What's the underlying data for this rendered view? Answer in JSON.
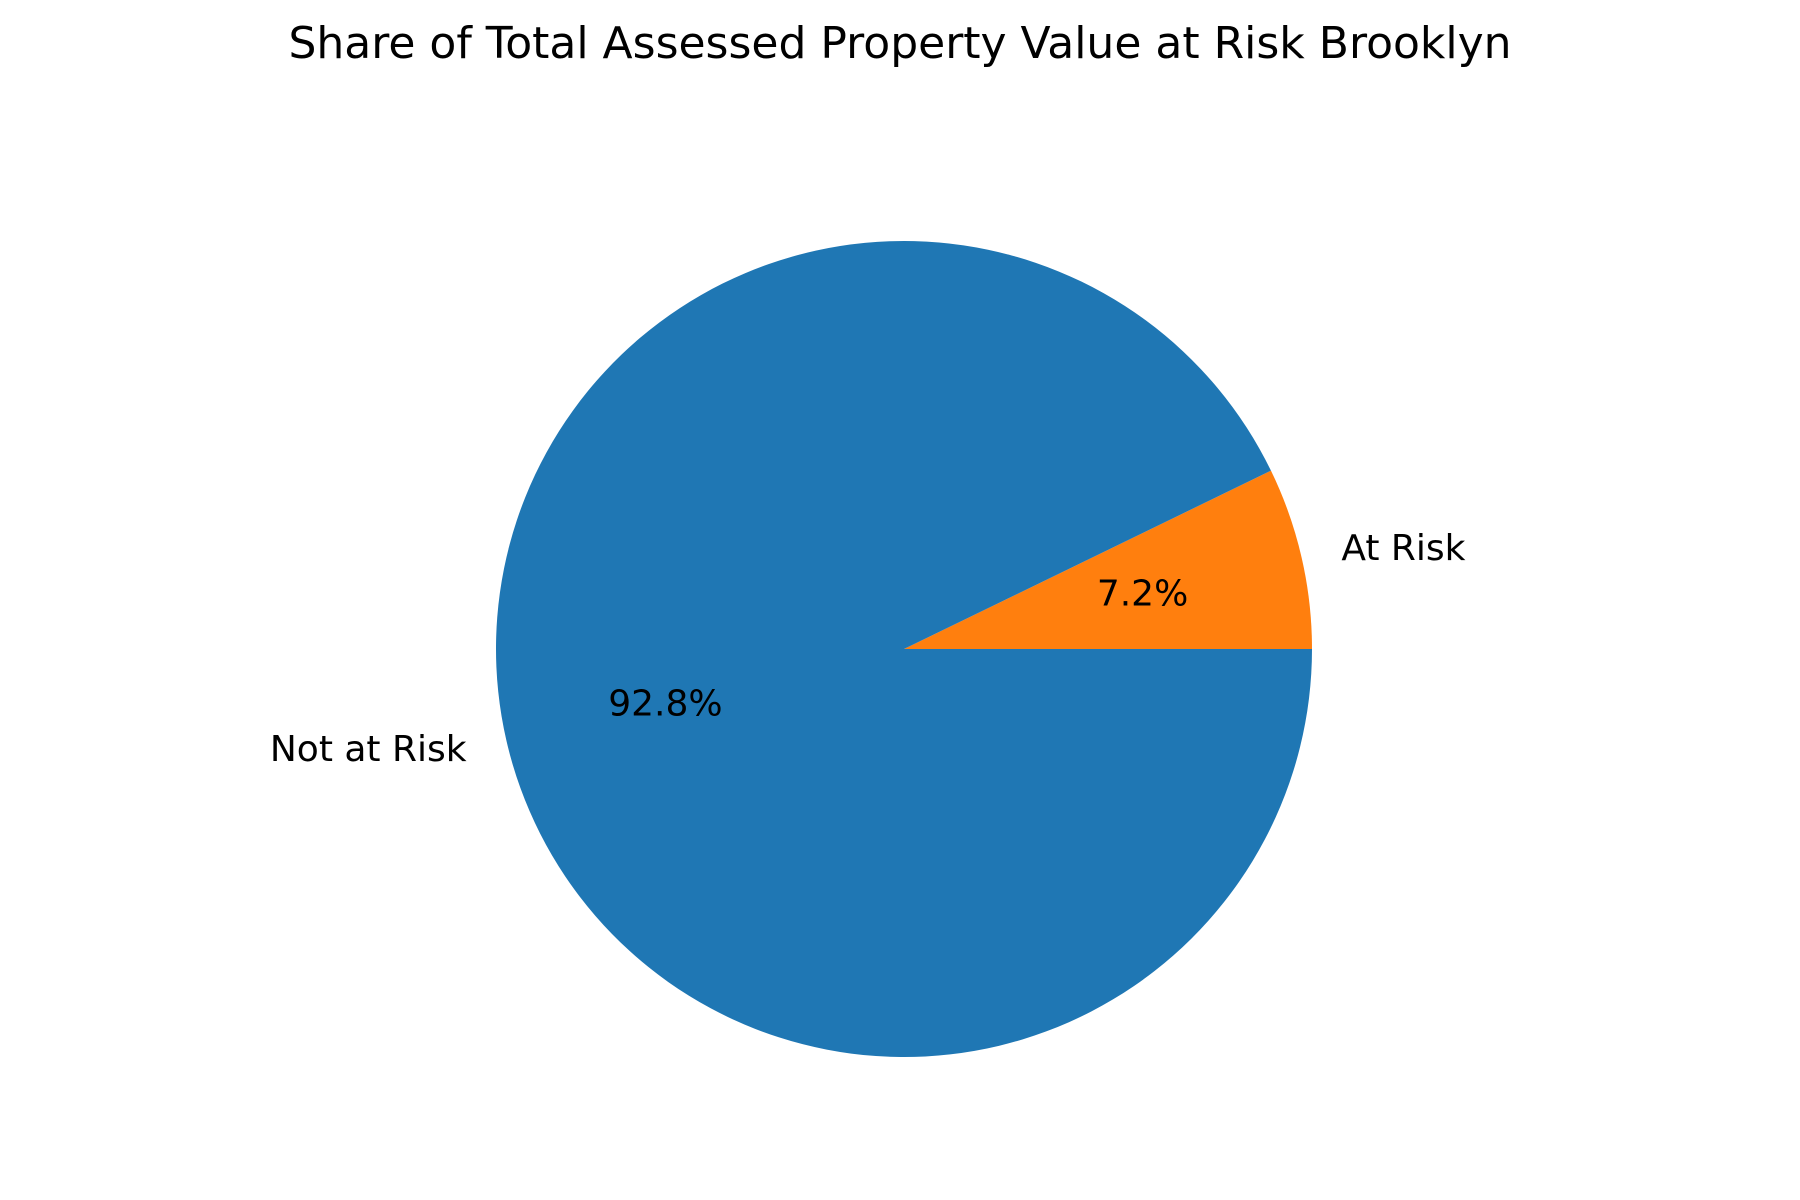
{
  "chart_data": {
    "type": "pie",
    "title": "Share of Total Assessed Property Value at Risk Brooklyn",
    "start_angle_deg": 0,
    "direction": "counterclockwise",
    "slices": [
      {
        "label": "At Risk",
        "value": 7.2,
        "pct_label": "7.2%",
        "color": "#ff7f0e"
      },
      {
        "label": "Not at Risk",
        "value": 92.8,
        "pct_label": "92.8%",
        "color": "#1f77b4"
      }
    ]
  }
}
